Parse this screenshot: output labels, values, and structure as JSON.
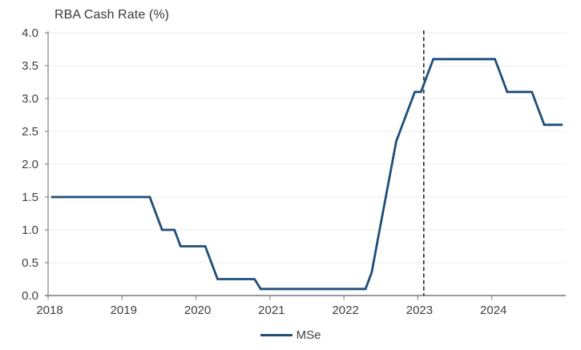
{
  "title": "RBA Cash Rate (%)",
  "legend": {
    "label": "MSe"
  },
  "colors": {
    "series_line": "#1F4E79",
    "dashed_line": "#1a1a1a",
    "axis_line": "#8c8c8c",
    "grid_line": "#eeeeee",
    "tick_text": "#3f3f3f"
  },
  "chart_data": {
    "type": "line",
    "title": "RBA Cash Rate (%)",
    "xlabel": "",
    "ylabel": "RBA Cash Rate (%)",
    "xlim": [
      2018,
      2025
    ],
    "ylim": [
      0.0,
      4.0
    ],
    "grid": "horizontal-faint",
    "legend_position": "bottom-center",
    "x_tick_labels": [
      "2018",
      "2019",
      "2020",
      "2021",
      "2022",
      "2023",
      "2024"
    ],
    "y_tick_labels": [
      "0.0",
      "0.5",
      "1.0",
      "1.5",
      "2.0",
      "2.5",
      "3.0",
      "3.5",
      "4.0"
    ],
    "annotation": {
      "type": "vline",
      "x": 2023.08,
      "style": "dashed"
    },
    "series": [
      {
        "name": "MSe",
        "frequency": "monthly",
        "start_year": 2018,
        "values": [
          1.5,
          1.5,
          1.5,
          1.5,
          1.5,
          1.5,
          1.5,
          1.5,
          1.5,
          1.5,
          1.5,
          1.5,
          1.5,
          1.5,
          1.5,
          1.5,
          1.5,
          1.25,
          1.0,
          1.0,
          1.0,
          0.75,
          0.75,
          0.75,
          0.75,
          0.75,
          0.5,
          0.25,
          0.25,
          0.25,
          0.25,
          0.25,
          0.25,
          0.25,
          0.1,
          0.1,
          0.1,
          0.1,
          0.1,
          0.1,
          0.1,
          0.1,
          0.1,
          0.1,
          0.1,
          0.1,
          0.1,
          0.1,
          0.1,
          0.1,
          0.1,
          0.1,
          0.35,
          0.85,
          1.35,
          1.85,
          2.35,
          2.6,
          2.85,
          3.1,
          3.1,
          3.35,
          3.6,
          3.6,
          3.6,
          3.6,
          3.6,
          3.6,
          3.6,
          3.6,
          3.6,
          3.6,
          3.6,
          3.35,
          3.1,
          3.1,
          3.1,
          3.1,
          3.1,
          2.85,
          2.6,
          2.6,
          2.6,
          2.6
        ]
      }
    ]
  }
}
